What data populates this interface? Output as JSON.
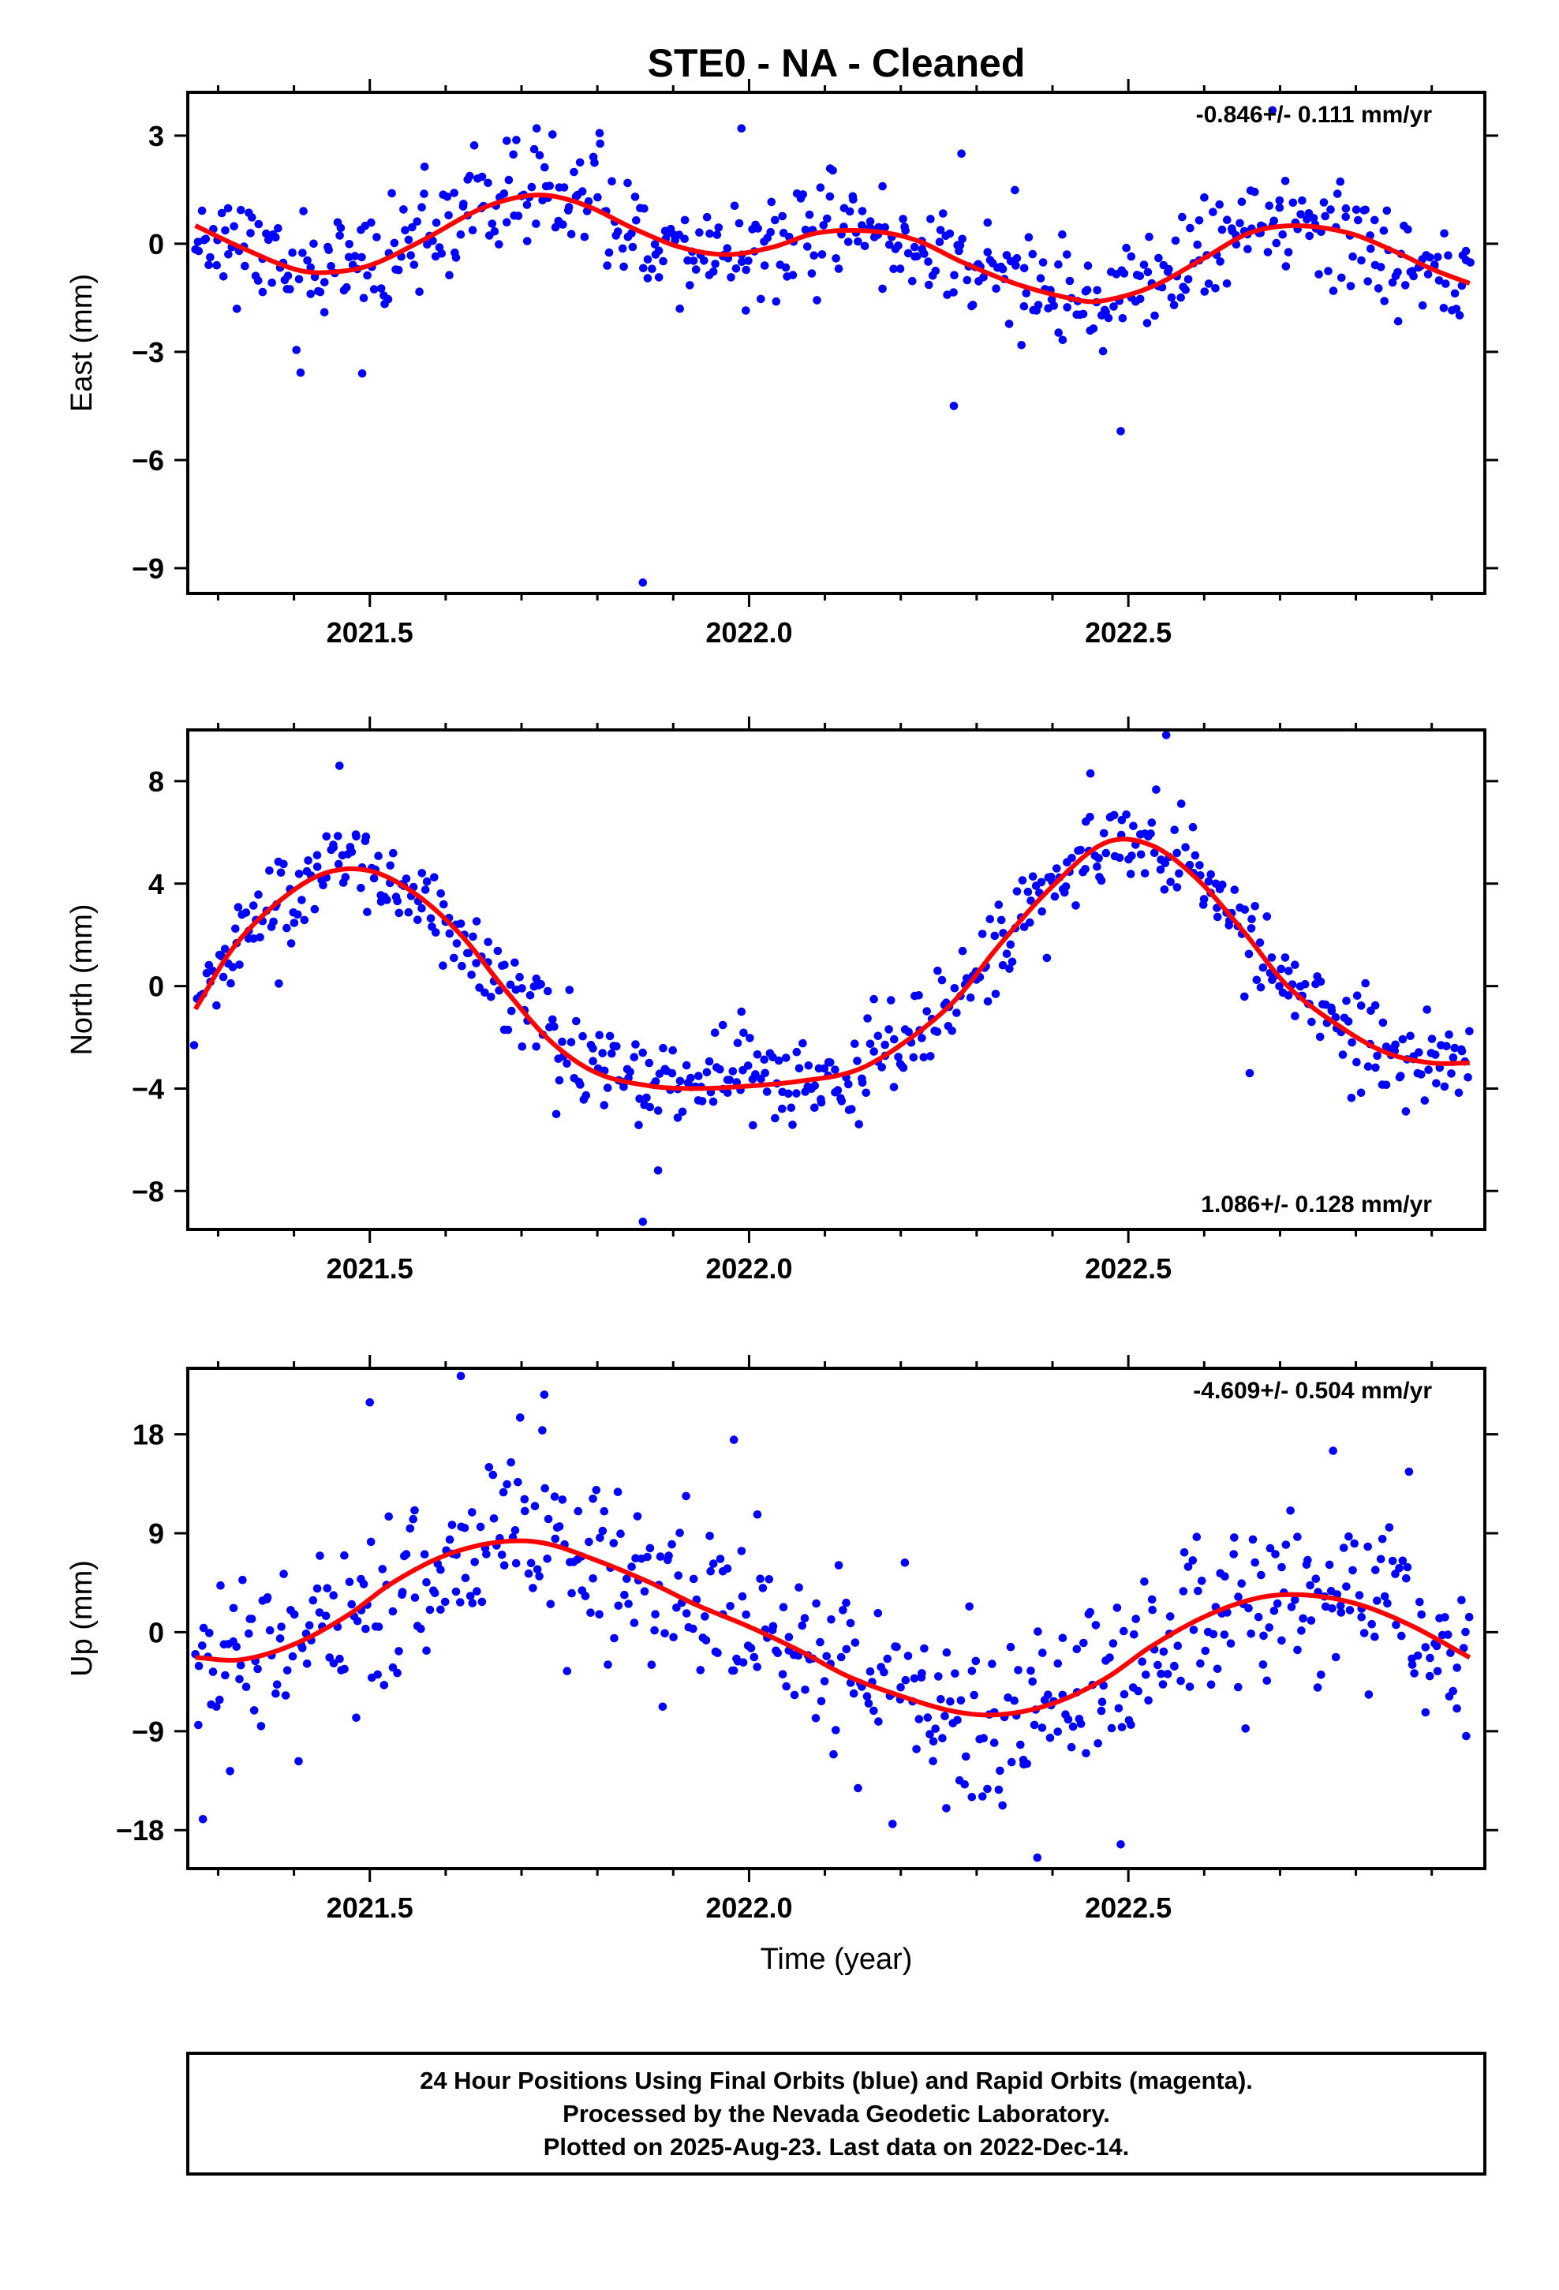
{
  "title": "STE0  - NA - Cleaned",
  "footer": {
    "lines": [
      "24 Hour Positions Using Final Orbits (blue) and Rapid Orbits (magenta).",
      "Processed by the Nevada Geodetic Laboratory.",
      "Plotted on 2025-Aug-23. Last data on 2022-Dec-14."
    ]
  },
  "colors": {
    "data_points": "#0000ff",
    "model_fit": "#ff0000",
    "frame": "#000000"
  },
  "xlabel": "Time (year)",
  "chart_data": [
    {
      "type": "scatter",
      "ylabel": "East (mm)",
      "rate_label": "-0.846+/- 0.111 mm/yr",
      "rate_position": "top-right",
      "xlim": [
        2021.26,
        2022.97
      ],
      "ylim": [
        -9.7,
        4.2
      ],
      "x_ticks": [
        2021.5,
        2022.0,
        2022.5
      ],
      "x_tick_labels": [
        "2021.5",
        "2022.0",
        "2022.5"
      ],
      "y_ticks": [
        -9,
        -6,
        -3,
        0,
        3
      ],
      "y_tick_labels": [
        "−9",
        "−6",
        "−3",
        "0",
        "3"
      ],
      "noise_sd": 0.75,
      "seed": 11,
      "points_count": 560,
      "series": [
        {
          "name": "",
          "role": "fit",
          "color": "#ff0000",
          "x": [
            2021.27,
            2021.33,
            2021.4,
            2021.44,
            2021.5,
            2021.57,
            2021.65,
            2021.72,
            2021.78,
            2021.85,
            2021.91,
            2021.97,
            2022.03,
            2022.09,
            2022.16,
            2022.22,
            2022.28,
            2022.35,
            2022.42,
            2022.46,
            2022.53,
            2022.6,
            2022.66,
            2022.72,
            2022.79,
            2022.85,
            2022.9,
            2022.95
          ],
          "y": [
            0.5,
            -0.1,
            -0.7,
            -0.8,
            -0.6,
            0.1,
            1.0,
            1.35,
            1.1,
            0.4,
            -0.1,
            -0.3,
            -0.1,
            0.3,
            0.35,
            0.1,
            -0.5,
            -1.1,
            -1.5,
            -1.6,
            -1.2,
            -0.4,
            0.3,
            0.5,
            0.3,
            -0.2,
            -0.7,
            -1.1
          ]
        }
      ],
      "outliers": [
        {
          "x": 2021.86,
          "y": -9.4
        },
        {
          "x": 2022.49,
          "y": -5.2
        },
        {
          "x": 2022.27,
          "y": -4.5
        },
        {
          "x": 2021.49,
          "y": -3.6
        },
        {
          "x": 2021.72,
          "y": 3.2
        },
        {
          "x": 2021.99,
          "y": 3.2
        },
        {
          "x": 2022.69,
          "y": 3.7
        },
        {
          "x": 2022.28,
          "y": 2.5
        }
      ]
    },
    {
      "type": "scatter",
      "ylabel": "North (mm)",
      "rate_label": "1.086+/- 0.128 mm/yr",
      "rate_position": "bottom-right",
      "xlim": [
        2021.26,
        2022.97
      ],
      "ylim": [
        -9.5,
        10.0
      ],
      "x_ticks": [
        2021.5,
        2022.0,
        2022.5
      ],
      "x_tick_labels": [
        "2021.5",
        "2022.0",
        "2022.5"
      ],
      "y_ticks": [
        -8,
        -4,
        0,
        4,
        8
      ],
      "y_tick_labels": [
        "−8",
        "−4",
        "0",
        "4",
        "8"
      ],
      "noise_sd": 0.9,
      "seed": 23,
      "points_count": 560,
      "series": [
        {
          "name": "",
          "role": "fit",
          "color": "#ff0000",
          "x": [
            2021.27,
            2021.32,
            2021.38,
            2021.44,
            2021.5,
            2021.56,
            2021.62,
            2021.68,
            2021.74,
            2021.8,
            2021.87,
            2021.93,
            2022.0,
            2022.07,
            2022.14,
            2022.2,
            2022.27,
            2022.33,
            2022.4,
            2022.47,
            2022.53,
            2022.59,
            2022.65,
            2022.71,
            2022.78,
            2022.84,
            2022.9,
            2022.95
          ],
          "y": [
            -0.9,
            1.5,
            3.3,
            4.4,
            4.5,
            3.6,
            2.0,
            -0.2,
            -2.2,
            -3.4,
            -3.9,
            -4.0,
            -3.9,
            -3.7,
            -3.3,
            -2.3,
            -0.6,
            1.6,
            3.9,
            5.6,
            5.5,
            4.2,
            2.2,
            0.0,
            -1.6,
            -2.6,
            -3.0,
            -3.0
          ]
        }
      ],
      "outliers": [
        {
          "x": 2021.86,
          "y": -9.2
        },
        {
          "x": 2021.46,
          "y": 8.6
        },
        {
          "x": 2022.55,
          "y": 9.8
        },
        {
          "x": 2022.45,
          "y": 8.3
        },
        {
          "x": 2021.38,
          "y": 0.1
        },
        {
          "x": 2022.66,
          "y": -3.4
        },
        {
          "x": 2021.99,
          "y": -1.0
        },
        {
          "x": 2021.88,
          "y": -7.2
        }
      ]
    },
    {
      "type": "scatter",
      "ylabel": "Up (mm)",
      "rate_label": "-4.609+/- 0.504 mm/yr",
      "rate_position": "top-right",
      "xlim": [
        2021.26,
        2022.97
      ],
      "ylim": [
        -21.5,
        24.0
      ],
      "x_ticks": [
        2021.5,
        2022.0,
        2022.5
      ],
      "x_tick_labels": [
        "2021.5",
        "2022.0",
        "2022.5"
      ],
      "y_ticks": [
        -18,
        -9,
        0,
        9,
        18
      ],
      "y_tick_labels": [
        "−18",
        "−9",
        "0",
        "9",
        "18"
      ],
      "noise_sd": 4.0,
      "seed": 37,
      "points_count": 560,
      "series": [
        {
          "name": "",
          "role": "fit",
          "color": "#ff0000",
          "x": [
            2021.27,
            2021.33,
            2021.4,
            2021.47,
            2021.53,
            2021.6,
            2021.67,
            2021.73,
            2021.8,
            2021.87,
            2021.93,
            2022.0,
            2022.07,
            2022.13,
            2022.2,
            2022.27,
            2022.33,
            2022.4,
            2022.47,
            2022.53,
            2022.6,
            2022.67,
            2022.73,
            2022.8,
            2022.87,
            2022.95
          ],
          "y": [
            -2.3,
            -2.5,
            -1.1,
            1.5,
            4.5,
            7.0,
            8.2,
            8.1,
            6.5,
            4.5,
            2.5,
            0.5,
            -1.8,
            -4.0,
            -5.8,
            -7.2,
            -7.5,
            -6.5,
            -4.2,
            -1.3,
            1.4,
            3.1,
            3.4,
            2.6,
            0.7,
            -2.3
          ]
        }
      ],
      "outliers": [
        {
          "x": 2021.62,
          "y": 23.3
        },
        {
          "x": 2021.73,
          "y": 21.6
        },
        {
          "x": 2021.5,
          "y": 20.9
        },
        {
          "x": 2022.38,
          "y": -20.5
        },
        {
          "x": 2022.49,
          "y": -19.3
        },
        {
          "x": 2021.28,
          "y": -17.0
        },
        {
          "x": 2022.26,
          "y": -16.0
        },
        {
          "x": 2021.98,
          "y": 17.5
        },
        {
          "x": 2022.77,
          "y": 16.5
        },
        {
          "x": 2022.87,
          "y": 14.6
        }
      ]
    }
  ]
}
